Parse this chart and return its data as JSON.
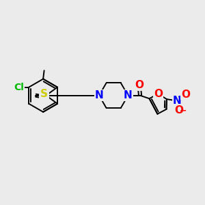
{
  "background_color": "#ebebeb",
  "bond_color": "#000000",
  "atom_colors": {
    "N": "#0000ff",
    "O": "#ff0000",
    "S": "#cccc00",
    "Cl": "#00bb00",
    "C_label": "#000000"
  },
  "font_size_atoms": 11,
  "dpi": 100
}
